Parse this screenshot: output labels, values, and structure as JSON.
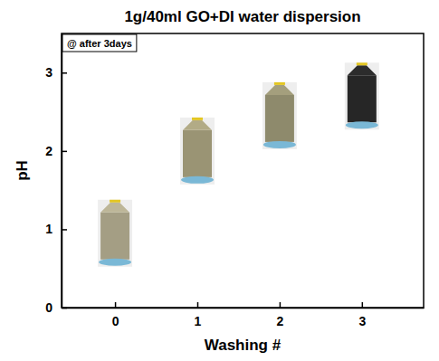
{
  "chart_data": {
    "type": "scatter",
    "title": "1g/40ml GO+DI water dispersion",
    "annotation": "@ after 3days",
    "x_label": "Washing #",
    "y_label": "pH",
    "x": [
      0,
      1,
      2,
      3
    ],
    "values": [
      0.95,
      2.0,
      2.45,
      2.7
    ],
    "colors": [
      "#a49e84",
      "#9a9474",
      "#8e8a6c",
      "#262626"
    ],
    "marker": "vial",
    "xlim": [
      -0.65,
      3.75
    ],
    "xticks": [
      0,
      1,
      2,
      3
    ],
    "ylim": [
      0,
      3.5
    ],
    "yticks": [
      0,
      1,
      2,
      3
    ]
  }
}
